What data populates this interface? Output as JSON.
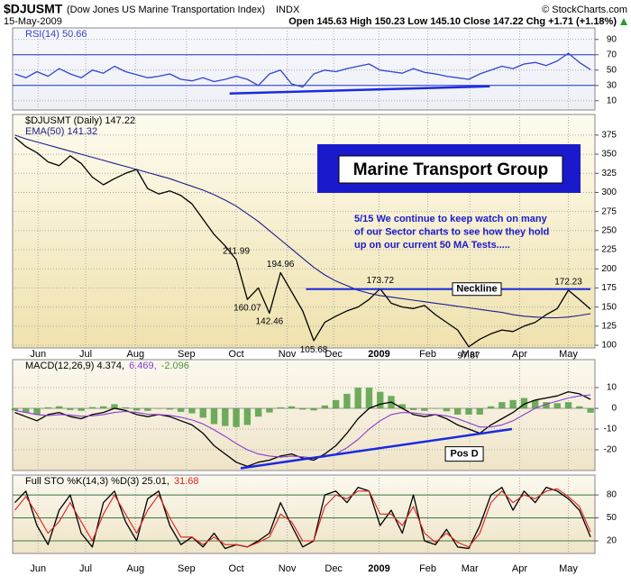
{
  "header": {
    "symbol": "$DJUSMT",
    "name": "(Dow Jones US Marine Transportation Index)",
    "exchange": "INDX",
    "date": "15-May-2009",
    "quote": "Open 145.63  High 150.23  Low 145.10  Close 147.22  Chg +1.71 (+1.18%)",
    "copyright": "© StockCharts.com"
  },
  "chart_data": [
    {
      "type": "line",
      "legend_orientation": "horizontal",
      "x": [
        0,
        1,
        2,
        3,
        4,
        5,
        6,
        7,
        8,
        9,
        10,
        11,
        12,
        13,
        14,
        15,
        16,
        17,
        18,
        19,
        20,
        21,
        22,
        23,
        24,
        25,
        26,
        27,
        28,
        29,
        30,
        31,
        32,
        33,
        34,
        35,
        36,
        37,
        38,
        39,
        40,
        41,
        42,
        43,
        44,
        45,
        46,
        47,
        48,
        49,
        50,
        51,
        52
      ],
      "xlim": [
        -0.2,
        52.4
      ],
      "ylim": [
        -2,
        105
      ],
      "yticks": [
        10,
        30,
        50,
        70,
        90
      ],
      "hlines": [
        30,
        70
      ],
      "hline_color": "#2233cc",
      "series": [
        {
          "name": "RSI(14) 50.66",
          "color": "#3344cc",
          "values": [
            45,
            40,
            48,
            42,
            52,
            45,
            40,
            50,
            46,
            55,
            48,
            44,
            40,
            42,
            45,
            38,
            36,
            40,
            35,
            38,
            42,
            38,
            30,
            45,
            50,
            32,
            28,
            45,
            50,
            48,
            52,
            55,
            58,
            50,
            48,
            46,
            52,
            47,
            45,
            42,
            40,
            38,
            45,
            50,
            55,
            52,
            58,
            60,
            56,
            62,
            72,
            60,
            50.66
          ]
        }
      ],
      "trendline": {
        "x": [
          19.4,
          42.9
        ],
        "y": [
          19.4,
          28.8
        ],
        "color": "#1a2ae0"
      }
    },
    {
      "type": "line",
      "legend_orientation": "vertical",
      "x": [
        0,
        1,
        2,
        3,
        4,
        5,
        6,
        7,
        8,
        9,
        10,
        11,
        12,
        13,
        14,
        15,
        16,
        17,
        18,
        19,
        20,
        21,
        22,
        23,
        24,
        25,
        26,
        27,
        28,
        29,
        30,
        31,
        32,
        33,
        34,
        35,
        36,
        37,
        38,
        39,
        40,
        41,
        42,
        43,
        44,
        45,
        46,
        47,
        48,
        49,
        50,
        51,
        52
      ],
      "xlim": [
        -0.2,
        52.4
      ],
      "ylim": [
        96.5,
        402
      ],
      "yticks": [
        100,
        125,
        150,
        175,
        200,
        225,
        250,
        275,
        300,
        325,
        350,
        375
      ],
      "xticks": [
        {
          "value": 2.1,
          "label": "Jun"
        },
        {
          "value": 6.4,
          "label": "Jul"
        },
        {
          "value": 10.9,
          "label": "Aug"
        },
        {
          "value": 15.5,
          "label": "Sep"
        },
        {
          "value": 20,
          "label": "Oct"
        },
        {
          "value": 24.6,
          "label": "Nov"
        },
        {
          "value": 28.8,
          "label": "Dec"
        },
        {
          "value": 32.9,
          "label": "2009"
        },
        {
          "value": 37.3,
          "label": "Feb"
        },
        {
          "value": 41.1,
          "label": "Mar"
        },
        {
          "value": 45.6,
          "label": "Apr"
        },
        {
          "value": 50,
          "label": "May"
        }
      ],
      "series": [
        {
          "name": "$DJUSMT (Daily) 147.22",
          "color": "#000000",
          "values": [
            372,
            360,
            352,
            340,
            335,
            348,
            338,
            320,
            310,
            318,
            325,
            330,
            305,
            298,
            302,
            296,
            285,
            265,
            245,
            230,
            212,
            160,
            175,
            142,
            195,
            170,
            145,
            106,
            130,
            138,
            145,
            150,
            160,
            174,
            155,
            150,
            148,
            152,
            140,
            130,
            120,
            98,
            108,
            115,
            120,
            118,
            125,
            130,
            140,
            148,
            172,
            160,
            147.22
          ]
        },
        {
          "name": "EMA(50) 141.32",
          "color": "#1c1c8c",
          "values": [
            375,
            370,
            366,
            362,
            358,
            354,
            350,
            346,
            342,
            338,
            334,
            330,
            326,
            322,
            318,
            313,
            308,
            303,
            297,
            290,
            282,
            272,
            262,
            250,
            238,
            226,
            214,
            202,
            192,
            184,
            178,
            172,
            168,
            165,
            163,
            161,
            159,
            157,
            155,
            153,
            151,
            149,
            147,
            145,
            143,
            140,
            138,
            137,
            136,
            136,
            137,
            139,
            141.32
          ]
        }
      ],
      "highs": [
        {
          "x": 20,
          "value": 211.99
        },
        {
          "x": 24,
          "value": 194.96
        },
        {
          "x": 33,
          "value": 173.72
        },
        {
          "x": 50,
          "value": 172.23
        }
      ],
      "lows": [
        {
          "x": 21,
          "value": 160.07
        },
        {
          "x": 23,
          "value": 142.46
        },
        {
          "x": 27,
          "value": 105.68
        },
        {
          "x": 41,
          "value": 97.87
        }
      ],
      "neckline": {
        "label": "Neckline",
        "value": 173.5,
        "x": [
          26.3,
          52
        ],
        "color": "#1a2ae0"
      },
      "title_box": "Marine Transport Group",
      "note": [
        "5/15  We continue to keep watch on many",
        "of our Sector charts to see how they hold",
        "up on our current 50 MA Tests....."
      ]
    },
    {
      "type": "line",
      "legend_orientation": "horizontal",
      "x": [
        0,
        1,
        2,
        3,
        4,
        5,
        6,
        7,
        8,
        9,
        10,
        11,
        12,
        13,
        14,
        15,
        16,
        17,
        18,
        19,
        20,
        21,
        22,
        23,
        24,
        25,
        26,
        27,
        28,
        29,
        30,
        31,
        32,
        33,
        34,
        35,
        36,
        37,
        38,
        39,
        40,
        41,
        42,
        43,
        44,
        45,
        46,
        47,
        48,
        49,
        50,
        51,
        52
      ],
      "xlim": [
        -0.2,
        52.4
      ],
      "ylim": [
        -30,
        23.5
      ],
      "yticks": [
        -20,
        -10,
        0,
        10
      ],
      "hlines": [
        0
      ],
      "hline_color": "#999999",
      "series": [
        {
          "name": "MACD(12,26,9) 4.374,",
          "color": "#000000",
          "values": [
            -2,
            -4,
            -6,
            -3,
            -2,
            -4,
            -5,
            -3,
            -2,
            0,
            -1,
            -3,
            -4,
            -3,
            -4,
            -6,
            -8,
            -12,
            -18,
            -22,
            -26,
            -28,
            -26,
            -25,
            -23,
            -22,
            -24,
            -25,
            -22,
            -18,
            -12,
            -5,
            0,
            2,
            3,
            0,
            -3,
            -4,
            -3,
            -5,
            -8,
            -10,
            -12,
            -8,
            -5,
            -2,
            2,
            4,
            5,
            6,
            8,
            7,
            4.374
          ]
        },
        {
          "name": "6.469,",
          "color": "#8a3ccf",
          "values": [
            -1,
            -2,
            -3,
            -3.5,
            -3,
            -3.2,
            -3.8,
            -3.6,
            -3,
            -2,
            -1.5,
            -2,
            -2.8,
            -3,
            -3.4,
            -4.3,
            -5.6,
            -7.5,
            -10.4,
            -13.5,
            -17,
            -20,
            -22,
            -23,
            -23.5,
            -23,
            -23.4,
            -24,
            -23.4,
            -22,
            -19,
            -15,
            -10,
            -6,
            -3,
            -2,
            -2.2,
            -2.8,
            -3,
            -3.6,
            -5,
            -7,
            -9,
            -9,
            -8,
            -6,
            -3,
            0,
            2,
            3.5,
            5,
            6,
            6.469
          ]
        },
        {
          "name": "-2.096",
          "color": "#4a9a3a",
          "type": "bar",
          "values": [
            -1,
            -2,
            -3,
            0.5,
            1,
            -0.8,
            -1.2,
            0.6,
            1,
            2,
            0.5,
            -1,
            -1.2,
            0,
            -0.6,
            -1.7,
            -2.4,
            -4.5,
            -7.6,
            -8.5,
            -9,
            -8,
            -4,
            -2,
            0.5,
            1,
            -0.6,
            -1,
            1.4,
            4,
            7,
            10,
            10,
            8,
            6,
            2,
            -0.8,
            -1.2,
            0,
            -1.4,
            -3,
            -3,
            -3,
            1,
            3,
            4,
            5,
            4,
            3,
            2.5,
            3,
            1,
            -2.096
          ]
        }
      ],
      "trendline": {
        "x": [
          20.4,
          44.9
        ],
        "y": [
          -28.9,
          -10
        ],
        "color": "#1a2ae0"
      },
      "annotation": {
        "text": "Pos D",
        "x": 40.6,
        "value": -22
      }
    },
    {
      "type": "line",
      "legend_orientation": "horizontal",
      "x": [
        0,
        1,
        2,
        3,
        4,
        5,
        6,
        7,
        8,
        9,
        10,
        11,
        12,
        13,
        14,
        15,
        16,
        17,
        18,
        19,
        20,
        21,
        22,
        23,
        24,
        25,
        26,
        27,
        28,
        29,
        30,
        31,
        32,
        33,
        34,
        35,
        36,
        37,
        38,
        39,
        40,
        41,
        42,
        43,
        44,
        45,
        46,
        47,
        48,
        49,
        50,
        51,
        52
      ],
      "xlim": [
        -0.2,
        52.4
      ],
      "ylim": [
        3.5,
        106
      ],
      "yticks": [
        20,
        50,
        80
      ],
      "xticks": [
        {
          "value": 2.1,
          "label": "Jun"
        },
        {
          "value": 6.4,
          "label": "Jul"
        },
        {
          "value": 10.9,
          "label": "Aug"
        },
        {
          "value": 15.5,
          "label": "Sep"
        },
        {
          "value": 20,
          "label": "Oct"
        },
        {
          "value": 24.6,
          "label": "Nov"
        },
        {
          "value": 28.8,
          "label": "Dec"
        },
        {
          "value": 32.9,
          "label": "2009"
        },
        {
          "value": 37.3,
          "label": "Feb"
        },
        {
          "value": 41.1,
          "label": "Mar"
        },
        {
          "value": 45.6,
          "label": "Apr"
        },
        {
          "value": 50,
          "label": "May"
        }
      ],
      "hlines": [
        20,
        50,
        80
      ],
      "hline_color": "#3d7a3d",
      "series": [
        {
          "name": "Full STO %K(14,3) %D(3) 25.01,",
          "color": "#000000",
          "values": [
            70,
            85,
            40,
            15,
            60,
            80,
            30,
            12,
            70,
            85,
            45,
            20,
            75,
            85,
            40,
            15,
            25,
            12,
            30,
            10,
            15,
            12,
            20,
            30,
            70,
            40,
            12,
            20,
            80,
            85,
            70,
            90,
            85,
            40,
            60,
            30,
            80,
            20,
            15,
            35,
            12,
            10,
            40,
            80,
            90,
            60,
            85,
            70,
            90,
            85,
            75,
            60,
            25.01
          ]
        },
        {
          "name": "31.68",
          "color": "#e02020",
          "values": [
            60,
            78,
            55,
            30,
            45,
            70,
            45,
            20,
            55,
            80,
            55,
            30,
            60,
            80,
            50,
            25,
            25,
            15,
            25,
            15,
            15,
            12,
            18,
            25,
            55,
            45,
            20,
            20,
            65,
            80,
            75,
            85,
            85,
            55,
            55,
            40,
            65,
            30,
            18,
            30,
            18,
            12,
            30,
            70,
            85,
            70,
            80,
            75,
            85,
            88,
            78,
            65,
            31.68
          ]
        }
      ]
    }
  ]
}
